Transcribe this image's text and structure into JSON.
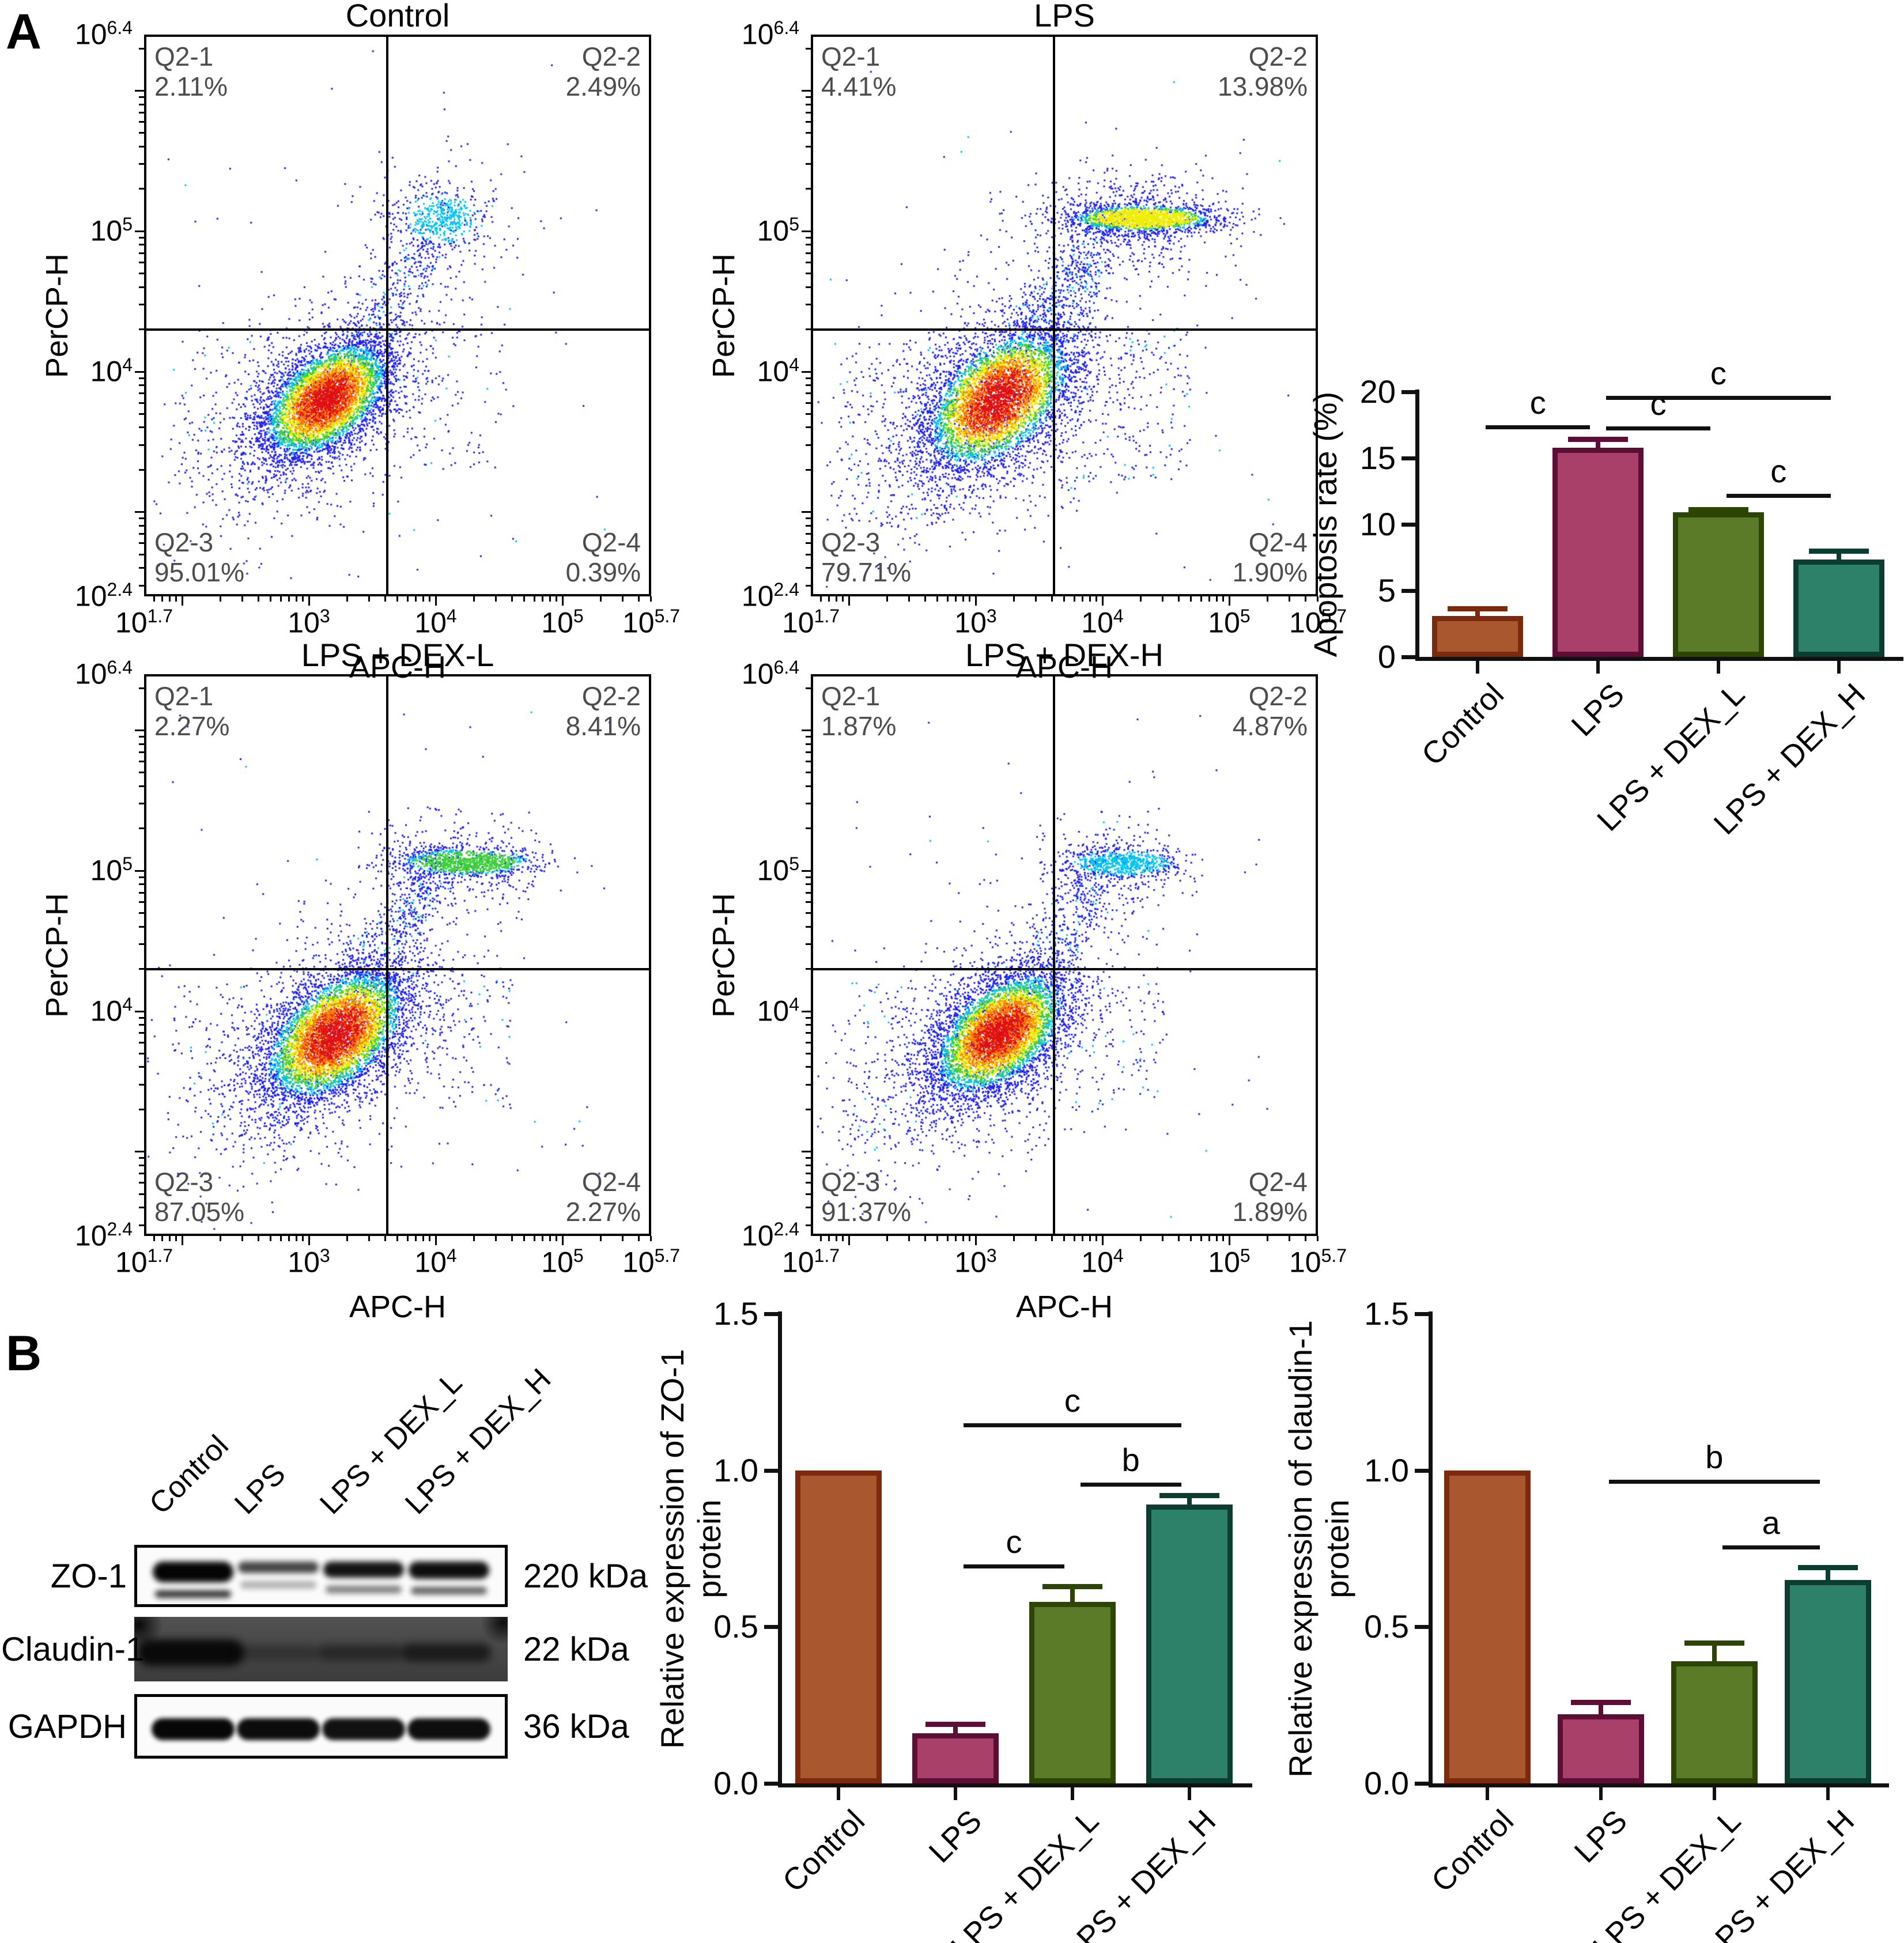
{
  "panelA": {
    "label": "A"
  },
  "panelB": {
    "label": "B",
    "blot": {
      "lanes": [
        "Control",
        "LPS",
        "LPS + DEX_L",
        "LPS + DEX_H"
      ],
      "rows": [
        {
          "label": "ZO-1",
          "kda": "220 kDa",
          "type": "light",
          "bands": [
            [
              0.98,
              36,
              0.8
            ],
            [
              0.72,
              20,
              0.3
            ],
            [
              0.92,
              28,
              0.5
            ],
            [
              0.94,
              30,
              0.62
            ]
          ]
        },
        {
          "label": "Claudin-1",
          "kda": "22 kDa",
          "type": "dark",
          "bands": [
            [
              0.93,
              185,
              46
            ],
            [
              0.3,
              150,
              26
            ],
            [
              0.45,
              150,
              28
            ],
            [
              0.65,
              155,
              32
            ]
          ]
        },
        {
          "label": "GAPDH",
          "kda": "36 kDa",
          "type": "light",
          "bands": [
            [
              0.97
            ],
            [
              0.95
            ],
            [
              0.93
            ],
            [
              0.94
            ]
          ]
        }
      ]
    }
  },
  "chart_data": [
    {
      "id": "flow_control",
      "type": "scatter",
      "title": "Control",
      "xlabel": "APC-H",
      "ylabel": "PerCP-H",
      "xlim_log": [
        1.7,
        5.7
      ],
      "ylim_log": [
        2.4,
        6.4
      ],
      "x_ticks": [
        {
          "t": "10^1.7",
          "log": 1.7
        },
        {
          "t": "10^3",
          "log": 3
        },
        {
          "t": "10^4",
          "log": 4
        },
        {
          "t": "10^5",
          "log": 5
        },
        {
          "t": "10^5.7",
          "log": 5.7
        }
      ],
      "y_ticks": [
        {
          "t": "10^6.4",
          "log": 6.4
        },
        {
          "t": "10^5",
          "log": 5
        },
        {
          "t": "10^4",
          "log": 4
        },
        {
          "t": "10^2.4",
          "log": 2.4
        }
      ],
      "gate_x_log": 3.62,
      "gate_y_log": 4.3,
      "quadrants": [
        {
          "name": "Q2-1",
          "value": "2.11%"
        },
        {
          "name": "Q2-2",
          "value": "2.49%"
        },
        {
          "name": "Q2-3",
          "value": "95.01%"
        },
        {
          "name": "Q2-4",
          "value": "0.39%"
        }
      ],
      "points": {
        "seed": 101,
        "main": {
          "cx": 3.13,
          "cy": 3.8,
          "sx": 0.26,
          "sy": 0.19,
          "tilt": 0.4,
          "n": 5200
        },
        "halo": {
          "cx": 3.1,
          "cy": 3.75,
          "sx": 0.55,
          "sy": 0.42,
          "tilt": 0.4,
          "n": 1000,
          "min": 5
        },
        "streak": {
          "cx": 4.07,
          "cy": 5.1,
          "sx": 0.17,
          "sy": 0.1,
          "tilt": 0,
          "n": 430,
          "min": 4
        },
        "shalo": {
          "cx": 3.95,
          "cy": 5.0,
          "sx": 0.33,
          "sy": 0.3,
          "tilt": 0,
          "n": 230,
          "min": 5
        },
        "bridge": {
          "x1": 3.35,
          "y1": 4.1,
          "x2": 3.95,
          "y2": 4.95,
          "jx": 0.5,
          "jy": 0.18,
          "n": 240
        },
        "extras": [
          {
            "x1": 1.95,
            "x2": 2.95,
            "y1": 3.1,
            "y2": 4.3,
            "n": 160
          },
          {
            "x1": 3.7,
            "x2": 4.55,
            "y1": 3.3,
            "y2": 4.3,
            "n": 60
          },
          {
            "x1": 1.8,
            "x2": 5.4,
            "y1": 2.5,
            "y2": 6.3,
            "n": 50
          }
        ]
      }
    },
    {
      "id": "flow_lps",
      "type": "scatter",
      "title": "LPS",
      "xlabel": "APC-H",
      "ylabel": "PerCP-H",
      "xlim_log": [
        1.7,
        5.7
      ],
      "ylim_log": [
        2.4,
        6.4
      ],
      "x_ticks": [
        {
          "t": "10^1.7",
          "log": 1.7
        },
        {
          "t": "10^3",
          "log": 3
        },
        {
          "t": "10^4",
          "log": 4
        },
        {
          "t": "10^5",
          "log": 5
        },
        {
          "t": "10^5.7",
          "log": 5.7
        }
      ],
      "y_ticks": [
        {
          "t": "10^6.4",
          "log": 6.4
        },
        {
          "t": "10^5",
          "log": 5
        },
        {
          "t": "10^4",
          "log": 4
        },
        {
          "t": "10^2.4",
          "log": 2.4
        }
      ],
      "gate_x_log": 3.62,
      "gate_y_log": 4.3,
      "quadrants": [
        {
          "name": "Q2-1",
          "value": "4.41%"
        },
        {
          "name": "Q2-2",
          "value": "13.98%"
        },
        {
          "name": "Q2-3",
          "value": "79.71%"
        },
        {
          "name": "Q2-4",
          "value": "1.90%"
        }
      ],
      "points": {
        "seed": 202,
        "main": {
          "cx": 3.17,
          "cy": 3.8,
          "sx": 0.3,
          "sy": 0.23,
          "tilt": 0.4,
          "n": 5200
        },
        "halo": {
          "cx": 3.1,
          "cy": 3.75,
          "sx": 0.6,
          "sy": 0.45,
          "tilt": 0.4,
          "n": 1200,
          "min": 5
        },
        "streak": {
          "cx": 4.32,
          "cy": 5.1,
          "sx": 0.3,
          "sy": 0.05,
          "tilt": 0,
          "n": 1500,
          "min": 2
        },
        "shalo": {
          "cx": 4.2,
          "cy": 5.08,
          "sx": 0.38,
          "sy": 0.2,
          "tilt": 0,
          "n": 600,
          "min": 5
        },
        "bridge": {
          "x1": 3.4,
          "y1": 4.15,
          "x2": 4.0,
          "y2": 5.0,
          "jx": 0.5,
          "jy": 0.2,
          "n": 450
        },
        "extras": [
          {
            "x1": 3.65,
            "x2": 4.7,
            "y1": 3.2,
            "y2": 4.3,
            "n": 200
          },
          {
            "x1": 1.85,
            "x2": 2.9,
            "y1": 2.9,
            "y2": 4.2,
            "n": 170
          },
          {
            "x1": 1.8,
            "x2": 5.5,
            "y1": 2.5,
            "y2": 6.3,
            "n": 60
          }
        ]
      }
    },
    {
      "id": "flow_dexl",
      "type": "scatter",
      "title": "LPS + DEX-L",
      "xlabel": "APC-H",
      "ylabel": "PerCP-H",
      "xlim_log": [
        1.7,
        5.7
      ],
      "ylim_log": [
        2.4,
        6.4
      ],
      "x_ticks": [
        {
          "t": "10^1.7",
          "log": 1.7
        },
        {
          "t": "10^3",
          "log": 3
        },
        {
          "t": "10^4",
          "log": 4
        },
        {
          "t": "10^5",
          "log": 5
        },
        {
          "t": "10^5.7",
          "log": 5.7
        }
      ],
      "y_ticks": [
        {
          "t": "10^6.4",
          "log": 6.4
        },
        {
          "t": "10^5",
          "log": 5
        },
        {
          "t": "10^4",
          "log": 4
        },
        {
          "t": "10^2.4",
          "log": 2.4
        }
      ],
      "gate_x_log": 3.62,
      "gate_y_log": 4.3,
      "quadrants": [
        {
          "name": "Q2-1",
          "value": "2.27%"
        },
        {
          "name": "Q2-2",
          "value": "8.41%"
        },
        {
          "name": "Q2-3",
          "value": "87.05%"
        },
        {
          "name": "Q2-4",
          "value": "2.27%"
        }
      ],
      "points": {
        "seed": 303,
        "main": {
          "cx": 3.2,
          "cy": 3.83,
          "sx": 0.29,
          "sy": 0.215,
          "tilt": 0.4,
          "n": 5600
        },
        "halo": {
          "cx": 3.12,
          "cy": 3.78,
          "sx": 0.58,
          "sy": 0.43,
          "tilt": 0.4,
          "n": 1100,
          "min": 5
        },
        "streak": {
          "cx": 4.25,
          "cy": 5.07,
          "sx": 0.27,
          "sy": 0.05,
          "tilt": 0,
          "n": 950,
          "min": 3
        },
        "shalo": {
          "cx": 4.15,
          "cy": 5.05,
          "sx": 0.35,
          "sy": 0.18,
          "tilt": 0,
          "n": 420,
          "min": 5
        },
        "bridge": {
          "x1": 3.45,
          "y1": 4.2,
          "x2": 4.0,
          "y2": 4.95,
          "jx": 0.5,
          "jy": 0.18,
          "n": 380
        },
        "extras": [
          {
            "x1": 3.7,
            "x2": 4.6,
            "y1": 3.3,
            "y2": 4.3,
            "n": 120
          },
          {
            "x1": 1.9,
            "x2": 2.9,
            "y1": 3.0,
            "y2": 4.2,
            "n": 150
          },
          {
            "x1": 1.8,
            "x2": 5.4,
            "y1": 2.5,
            "y2": 6.3,
            "n": 50
          }
        ]
      }
    },
    {
      "id": "flow_dexh",
      "type": "scatter",
      "title": "LPS + DEX-H",
      "xlabel": "APC-H",
      "ylabel": "PerCP-H",
      "xlim_log": [
        1.7,
        5.7
      ],
      "ylim_log": [
        2.4,
        6.4
      ],
      "x_ticks": [
        {
          "t": "10^1.7",
          "log": 1.7
        },
        {
          "t": "10^3",
          "log": 3
        },
        {
          "t": "10^4",
          "log": 4
        },
        {
          "t": "10^5",
          "log": 5
        },
        {
          "t": "10^5.7",
          "log": 5.7
        }
      ],
      "y_ticks": [
        {
          "t": "10^6.4",
          "log": 6.4
        },
        {
          "t": "10^5",
          "log": 5
        },
        {
          "t": "10^4",
          "log": 4
        },
        {
          "t": "10^2.4",
          "log": 2.4
        }
      ],
      "gate_x_log": 3.62,
      "gate_y_log": 4.3,
      "quadrants": [
        {
          "name": "Q2-1",
          "value": "1.87%"
        },
        {
          "name": "Q2-2",
          "value": "4.87%"
        },
        {
          "name": "Q2-3",
          "value": "91.37%"
        },
        {
          "name": "Q2-4",
          "value": "1.89%"
        }
      ],
      "points": {
        "seed": 404,
        "main": {
          "cx": 3.18,
          "cy": 3.84,
          "sx": 0.27,
          "sy": 0.2,
          "tilt": 0.4,
          "n": 5600
        },
        "halo": {
          "cx": 3.1,
          "cy": 3.78,
          "sx": 0.56,
          "sy": 0.42,
          "tilt": 0.4,
          "n": 1050,
          "min": 5
        },
        "streak": {
          "cx": 4.15,
          "cy": 5.06,
          "sx": 0.22,
          "sy": 0.05,
          "tilt": 0,
          "n": 620,
          "min": 4
        },
        "shalo": {
          "cx": 4.05,
          "cy": 5.03,
          "sx": 0.3,
          "sy": 0.16,
          "tilt": 0,
          "n": 300,
          "min": 5
        },
        "bridge": {
          "x1": 3.4,
          "y1": 4.15,
          "x2": 3.98,
          "y2": 4.92,
          "jx": 0.5,
          "jy": 0.18,
          "n": 300
        },
        "extras": [
          {
            "x1": 3.7,
            "x2": 4.5,
            "y1": 3.3,
            "y2": 4.25,
            "n": 90
          },
          {
            "x1": 1.9,
            "x2": 2.9,
            "y1": 3.0,
            "y2": 4.2,
            "n": 140
          },
          {
            "x1": 1.8,
            "x2": 5.4,
            "y1": 2.5,
            "y2": 6.3,
            "n": 50
          }
        ]
      }
    },
    {
      "id": "apoptosis",
      "type": "bar",
      "ylabel_lines": [
        "Apoptosis rate (%)"
      ],
      "ylim": [
        0,
        20
      ],
      "yticks": [
        "0",
        "5",
        "10",
        "15",
        "20"
      ],
      "categories": [
        "Control",
        "LPS",
        "LPS + DEX_L",
        "LPS + DEX_H"
      ],
      "values": [
        3.1,
        15.8,
        10.9,
        7.35
      ],
      "errors": [
        0.55,
        0.65,
        0.25,
        0.65
      ],
      "bar_colors": [
        "#a9572e",
        "#a84069",
        "#5c7b28",
        "#2e8169"
      ],
      "bar_strokes": [
        "#7c2a0e",
        "#5c0e35",
        "#2c4503",
        "#0b3e30"
      ],
      "significance": [
        {
          "x1": 0,
          "x2": 1,
          "y": 17.5,
          "label": "c"
        },
        {
          "x1": 1,
          "x2": 2,
          "y": 17.4,
          "label": "c"
        },
        {
          "x1": 1,
          "x2": 3,
          "y": 19.7,
          "label": "c"
        },
        {
          "x1": 2,
          "x2": 3,
          "y": 12.3,
          "label": "c"
        }
      ]
    },
    {
      "id": "zo1",
      "type": "bar",
      "ylabel_lines": [
        "Relative expression of ZO-1",
        "protein"
      ],
      "ylim": [
        0,
        1.5
      ],
      "yticks": [
        "0.0",
        "0.5",
        "1.0",
        "1.5"
      ],
      "categories": [
        "Control",
        "LPS",
        "LPS + DEX_L",
        "LPS + DEX_H"
      ],
      "values": [
        1.0,
        0.16,
        0.58,
        0.89
      ],
      "errors": [
        0,
        0.03,
        0.05,
        0.03
      ],
      "bar_colors": [
        "#a9572e",
        "#a84069",
        "#5c7b28",
        "#2e8169"
      ],
      "bar_strokes": [
        "#7c2a0e",
        "#5c0e35",
        "#2c4503",
        "#0b3e30"
      ],
      "significance": [
        {
          "x1": 1,
          "x2": 2,
          "y": 0.7,
          "label": "c"
        },
        {
          "x1": 2,
          "x2": 3,
          "y": 0.96,
          "label": "b"
        },
        {
          "x1": 1,
          "x2": 3,
          "y": 1.15,
          "label": "c"
        }
      ]
    },
    {
      "id": "claudin",
      "type": "bar",
      "ylabel_lines": [
        "Relative expression of claudin-1",
        "protein"
      ],
      "ylim": [
        0,
        1.5
      ],
      "yticks": [
        "0.0",
        "0.5",
        "1.0",
        "1.5"
      ],
      "categories": [
        "Control",
        "LPS",
        "LPS + DEX_L",
        "LPS + DEX_H"
      ],
      "values": [
        1.0,
        0.22,
        0.39,
        0.65
      ],
      "errors": [
        0,
        0.04,
        0.06,
        0.04
      ],
      "bar_colors": [
        "#a9572e",
        "#a84069",
        "#5c7b28",
        "#2e8169"
      ],
      "bar_strokes": [
        "#7c2a0e",
        "#5c0e35",
        "#2c4503",
        "#0b3e30"
      ],
      "significance": [
        {
          "x1": 2,
          "x2": 3,
          "y": 0.76,
          "label": "a"
        },
        {
          "x1": 1,
          "x2": 3,
          "y": 0.97,
          "label": "b"
        }
      ]
    }
  ]
}
